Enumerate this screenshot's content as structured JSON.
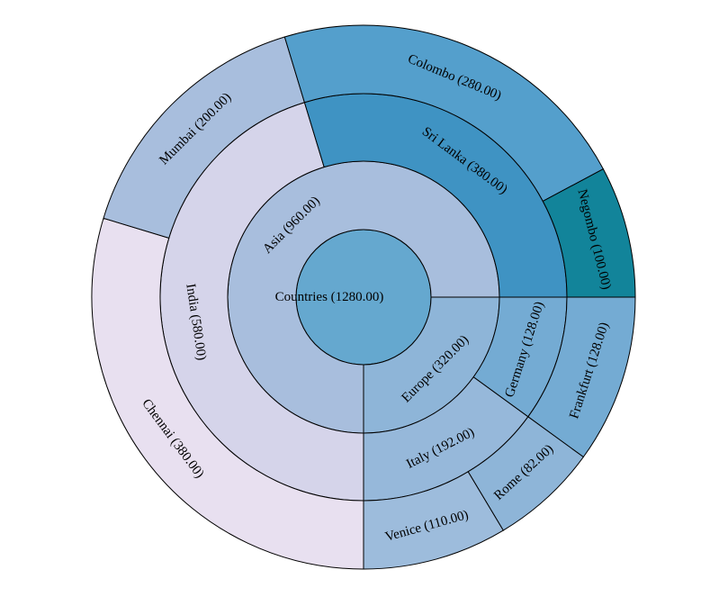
{
  "chart_data": {
    "type": "sunburst",
    "root": {
      "label": "Countries (1280.00)",
      "value": 1280,
      "color": "#65a8cf",
      "children": [
        {
          "label": "Asia (960.00)",
          "value": 960,
          "color": "#a8bedd",
          "children": [
            {
              "label": "India (580.00)",
              "value": 580,
              "color": "#d5d4ea",
              "children": [
                {
                  "label": "Chennai (380.00)",
                  "value": 380,
                  "color": "#e8e0f0"
                },
                {
                  "label": "Mumbai (200.00)",
                  "value": 200,
                  "color": "#a8bedd"
                }
              ]
            },
            {
              "label": "Sri Lanka (380.00)",
              "value": 380,
              "color": "#3f93c3",
              "children": [
                {
                  "label": "Colombo (280.00)",
                  "value": 280,
                  "color": "#549fcc"
                },
                {
                  "label": "Negombo (100.00)",
                  "value": 100,
                  "color": "#12849a"
                }
              ]
            }
          ]
        },
        {
          "label": "Europe (320.00)",
          "value": 320,
          "color": "#8eb5d8",
          "children": [
            {
              "label": "Germany (128.00)",
              "value": 128,
              "color": "#74abd3",
              "children": [
                {
                  "label": "Frankfurt (128.00)",
                  "value": 128,
                  "color": "#74abd3"
                }
              ]
            },
            {
              "label": "Italy (192.00)",
              "value": 192,
              "color": "#96b8da",
              "children": [
                {
                  "label": "Rome (82.00)",
                  "value": 82,
                  "color": "#8eb5d8"
                },
                {
                  "label": "Venice (110.00)",
                  "value": 110,
                  "color": "#9dbcdc"
                }
              ]
            }
          ]
        }
      ]
    }
  }
}
